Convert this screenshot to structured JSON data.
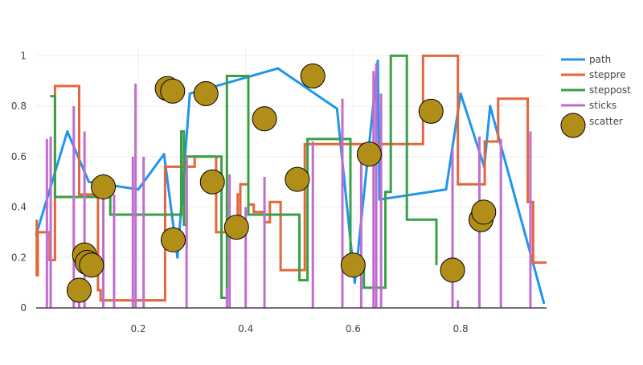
{
  "chart_data": {
    "type": "line",
    "title": "",
    "xlabel": "",
    "ylabel": "",
    "xlim": [
      0.01,
      0.96
    ],
    "ylim": [
      0,
      1.03
    ],
    "grid": true,
    "legend_position": "top-right",
    "x_ticks": [
      {
        "value": 0.2,
        "label": "0.2"
      },
      {
        "value": 0.4,
        "label": "0.4"
      },
      {
        "value": 0.6,
        "label": "0.6"
      },
      {
        "value": 0.8,
        "label": "0.8"
      }
    ],
    "y_ticks": [
      {
        "value": 0,
        "label": "0"
      },
      {
        "value": 0.2,
        "label": "0.2"
      },
      {
        "value": 0.4,
        "label": "0.4"
      },
      {
        "value": 0.6,
        "label": "0.6"
      },
      {
        "value": 0.8,
        "label": "0.8"
      },
      {
        "value": 1,
        "label": "1"
      }
    ],
    "series": [
      {
        "name": "path",
        "mode": "line",
        "color": "#1f96ec",
        "points": [
          [
            0.01,
            0.29
          ],
          [
            0.068,
            0.7
          ],
          [
            0.108,
            0.5
          ],
          [
            0.2,
            0.47
          ],
          [
            0.248,
            0.61
          ],
          [
            0.273,
            0.2
          ],
          [
            0.296,
            0.85
          ],
          [
            0.46,
            0.95
          ],
          [
            0.57,
            0.79
          ],
          [
            0.603,
            0.1
          ],
          [
            0.646,
            0.98
          ],
          [
            0.649,
            0.43
          ],
          [
            0.773,
            0.47
          ],
          [
            0.8,
            0.85
          ],
          [
            0.844,
            0.56
          ],
          [
            0.855,
            0.8
          ],
          [
            0.955,
            0.02
          ]
        ]
      },
      {
        "name": "steppre",
        "mode": "step-pre",
        "color": "#e0683c",
        "points": [
          [
            0.011,
            0.35
          ],
          [
            0.013,
            0.13
          ],
          [
            0.035,
            0.3
          ],
          [
            0.045,
            0.19
          ],
          [
            0.09,
            0.88
          ],
          [
            0.125,
            0.45
          ],
          [
            0.13,
            0.07
          ],
          [
            0.25,
            0.03
          ],
          [
            0.305,
            0.56
          ],
          [
            0.315,
            0.6
          ],
          [
            0.345,
            0.6
          ],
          [
            0.355,
            0.3
          ],
          [
            0.365,
            0.3
          ],
          [
            0.385,
            0.3
          ],
          [
            0.39,
            0.45
          ],
          [
            0.39,
            0.3
          ],
          [
            0.405,
            0.49
          ],
          [
            0.415,
            0.41
          ],
          [
            0.435,
            0.38
          ],
          [
            0.445,
            0.34
          ],
          [
            0.465,
            0.42
          ],
          [
            0.505,
            0.15
          ],
          [
            0.51,
            0.15
          ],
          [
            0.73,
            0.65
          ],
          [
            0.795,
            1.0
          ],
          [
            0.82,
            0.49
          ],
          [
            0.845,
            0.49
          ],
          [
            0.87,
            0.66
          ],
          [
            0.925,
            0.83
          ],
          [
            0.935,
            0.42
          ],
          [
            0.96,
            0.18
          ]
        ]
      },
      {
        "name": "steppost",
        "mode": "step-post",
        "color": "#39a046",
        "points": [
          [
            0.036,
            0.84
          ],
          [
            0.045,
            0.44
          ],
          [
            0.115,
            0.44
          ],
          [
            0.148,
            0.37
          ],
          [
            0.28,
            0.7
          ],
          [
            0.285,
            0.33
          ],
          [
            0.29,
            0.6
          ],
          [
            0.355,
            0.04
          ],
          [
            0.365,
            0.92
          ],
          [
            0.405,
            0.37
          ],
          [
            0.5,
            0.11
          ],
          [
            0.515,
            0.67
          ],
          [
            0.595,
            0.17
          ],
          [
            0.62,
            0.08
          ],
          [
            0.66,
            0.46
          ],
          [
            0.67,
            1.0
          ],
          [
            0.7,
            0.35
          ],
          [
            0.755,
            0.17
          ]
        ]
      },
      {
        "name": "sticks",
        "mode": "sticks",
        "color": "#c06cd0",
        "points": [
          [
            0.03,
            0.67
          ],
          [
            0.037,
            0.68
          ],
          [
            0.08,
            0.8
          ],
          [
            0.09,
            0.07
          ],
          [
            0.1,
            0.7
          ],
          [
            0.135,
            0.53
          ],
          [
            0.155,
            0.45
          ],
          [
            0.19,
            0.6
          ],
          [
            0.195,
            0.89
          ],
          [
            0.21,
            0.6
          ],
          [
            0.29,
            0.6
          ],
          [
            0.365,
            0.08
          ],
          [
            0.37,
            0.53
          ],
          [
            0.4,
            0.4
          ],
          [
            0.435,
            0.52
          ],
          [
            0.525,
            0.66
          ],
          [
            0.58,
            0.83
          ],
          [
            0.615,
            0.64
          ],
          [
            0.638,
            0.94
          ],
          [
            0.643,
            0.97
          ],
          [
            0.652,
            0.85
          ],
          [
            0.785,
            0.63
          ],
          [
            0.795,
            0.03
          ],
          [
            0.835,
            0.68
          ],
          [
            0.875,
            0.67
          ],
          [
            0.93,
            0.7
          ]
        ]
      },
      {
        "name": "scatter",
        "mode": "markers",
        "color": "#b08e18",
        "points": [
          [
            0.254,
            0.87
          ],
          [
            0.264,
            0.86
          ],
          [
            0.326,
            0.85
          ],
          [
            0.435,
            0.75
          ],
          [
            0.525,
            0.92
          ],
          [
            0.745,
            0.78
          ],
          [
            0.63,
            0.61
          ],
          [
            0.496,
            0.51
          ],
          [
            0.338,
            0.5
          ],
          [
            0.135,
            0.48
          ],
          [
            0.265,
            0.27
          ],
          [
            0.383,
            0.32
          ],
          [
            0.1,
            0.21
          ],
          [
            0.105,
            0.18
          ],
          [
            0.113,
            0.17
          ],
          [
            0.09,
            0.07
          ],
          [
            0.6,
            0.17
          ],
          [
            0.785,
            0.15
          ],
          [
            0.838,
            0.35
          ],
          [
            0.843,
            0.38
          ]
        ]
      }
    ]
  }
}
